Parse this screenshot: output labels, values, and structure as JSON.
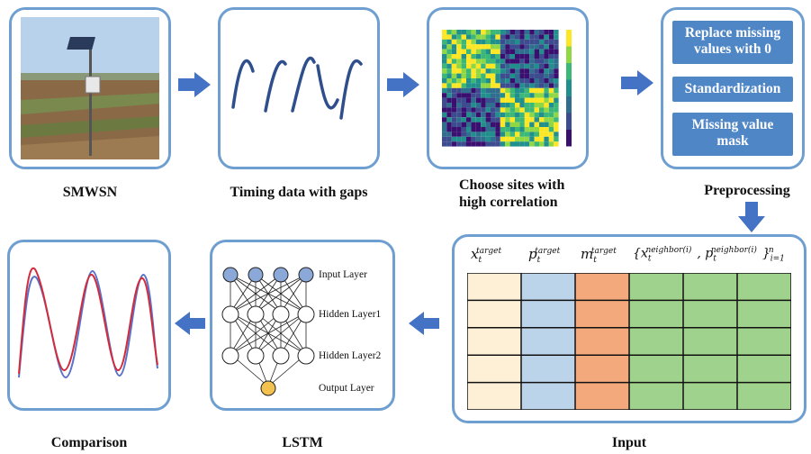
{
  "captions": {
    "smwsn": "SMWSN",
    "timing": "Timing data with gaps",
    "choose_line1": "Choose sites with",
    "choose_line2": "high correlation",
    "preprocessing": "Preprocessing",
    "input": "Input",
    "lstm": "LSTM",
    "comparison": "Comparison"
  },
  "preprocessing": {
    "step1_line1": "Replace missing",
    "step1_line2": "values with 0",
    "step2": "Standardization",
    "step3_line1": "Missing value",
    "step3_line2": "mask"
  },
  "lstm": {
    "input_layer": "Input Layer",
    "hidden_layer1": "Hidden Layer1",
    "hidden_layer2": "Hidden Layer2",
    "output_layer": "Output Layer"
  },
  "input_table": {
    "col_headers": {
      "x_var": "x",
      "x_sub": "t",
      "x_sup": "target",
      "p_var": "p",
      "p_sub": "t",
      "p_sup": "target",
      "m_var": "m",
      "m_sub": "t",
      "m_sup": "target",
      "n_open": "{x",
      "n_sub1": "t",
      "n_sup1": "neighbor(i)",
      "n_comma": ", p",
      "n_sub2": "t",
      "n_sup2": "neighbor(i)",
      "n_close": "}",
      "n_sub3": "i=1",
      "n_sup3": "n"
    },
    "column_colors": [
      "#fdf0d6",
      "#bcd4ea",
      "#f3a97c",
      "#9fd28c",
      "#9fd28c",
      "#9fd28c"
    ],
    "rows": 5
  },
  "colors": {
    "panel_border": "#6f9fd0",
    "arrow": "#4472c4",
    "box_fill": "#4f86c6",
    "wave": "#2f4f8c",
    "node_input": "#8aa8d8",
    "node_output": "#f2c14e",
    "series_red": "#d22c3c",
    "series_blue": "#5a72c8"
  },
  "icons": {
    "field_photo": "field-sensor-photo",
    "heatmap": "correlation-heatmap",
    "flow_arrow": "arrow-right"
  }
}
